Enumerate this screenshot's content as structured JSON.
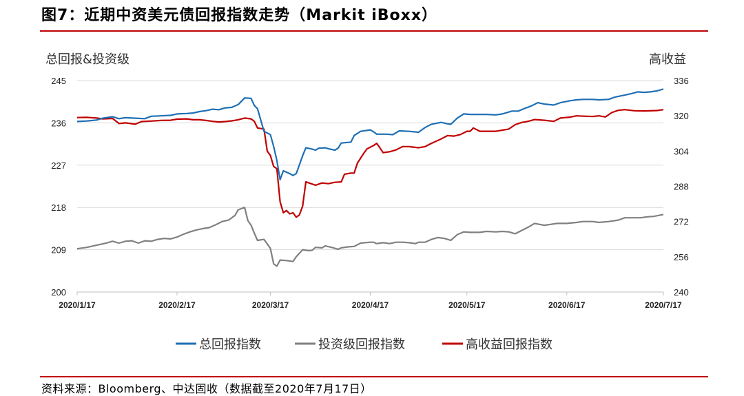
{
  "title": "图7：近期中资美元债回报指数走势（Markit iBoxx）",
  "source": "资料来源：Bloomberg、中达固收（数据截至2020年7月17日）",
  "colors": {
    "accent_red": "#c00000"
  },
  "chart_data": {
    "type": "line",
    "y_left_label": "总回报&投资级",
    "y_right_label": "高收益",
    "y_left": {
      "min": 200,
      "max": 245,
      "ticks": [
        "245",
        "236",
        "227",
        "218",
        "209",
        "200"
      ],
      "values": [
        245,
        236,
        227,
        218,
        209,
        200
      ]
    },
    "y_right": {
      "min": 240,
      "max": 336,
      "ticks": [
        "336",
        "320",
        "304",
        "288",
        "272",
        "256",
        "240"
      ],
      "values": [
        336,
        320,
        304,
        288,
        272,
        256,
        240
      ]
    },
    "x_ticks": [
      "2020/1/17",
      "2020/2/17",
      "2020/3/17",
      "2020/4/17",
      "2020/5/17",
      "2020/6/17",
      "2020/7/17"
    ],
    "x_tick_days": [
      0,
      31,
      60,
      91,
      121,
      152,
      182
    ],
    "grid": true,
    "legend_position": "bottom",
    "series": [
      {
        "name": "总回报指数",
        "axis": "left",
        "color": "#1f6fb4",
        "points": [
          [
            0,
            236.3
          ],
          [
            3,
            236.4
          ],
          [
            6,
            236.6
          ],
          [
            8,
            237.0
          ],
          [
            11,
            237.3
          ],
          [
            13,
            236.9
          ],
          [
            15,
            237.1
          ],
          [
            18,
            237.0
          ],
          [
            21,
            236.9
          ],
          [
            23,
            237.4
          ],
          [
            26,
            237.5
          ],
          [
            29,
            237.6
          ],
          [
            31,
            237.9
          ],
          [
            34,
            238.0
          ],
          [
            36,
            238.1
          ],
          [
            38,
            238.4
          ],
          [
            40,
            238.6
          ],
          [
            42,
            238.9
          ],
          [
            44,
            238.8
          ],
          [
            46,
            239.2
          ],
          [
            48,
            239.3
          ],
          [
            50,
            239.9
          ],
          [
            52,
            241.3
          ],
          [
            54,
            241.2
          ],
          [
            55,
            239.7
          ],
          [
            56,
            239.0
          ],
          [
            58,
            234.2
          ],
          [
            60,
            233.5
          ],
          [
            61,
            231.0
          ],
          [
            62,
            228.0
          ],
          [
            63,
            223.9
          ],
          [
            64,
            225.8
          ],
          [
            66,
            225.2
          ],
          [
            67,
            224.8
          ],
          [
            68,
            225.2
          ],
          [
            70,
            229.0
          ],
          [
            71,
            230.7
          ],
          [
            73,
            230.4
          ],
          [
            74,
            230.2
          ],
          [
            75,
            230.6
          ],
          [
            77,
            230.7
          ],
          [
            78,
            230.5
          ],
          [
            80,
            230.2
          ],
          [
            81,
            230.6
          ],
          [
            82,
            231.7
          ],
          [
            85,
            231.9
          ],
          [
            86,
            233.3
          ],
          [
            88,
            234.2
          ],
          [
            91,
            234.5
          ],
          [
            92,
            234.1
          ],
          [
            93,
            233.6
          ],
          [
            96,
            233.6
          ],
          [
            98,
            233.5
          ],
          [
            100,
            234.3
          ],
          [
            103,
            234.2
          ],
          [
            106,
            234.0
          ],
          [
            108,
            235.0
          ],
          [
            110,
            235.7
          ],
          [
            113,
            236.1
          ],
          [
            115,
            235.8
          ],
          [
            116,
            235.7
          ],
          [
            118,
            237.0
          ],
          [
            120,
            237.9
          ],
          [
            122,
            237.8
          ],
          [
            125,
            237.8
          ],
          [
            127,
            237.8
          ],
          [
            130,
            237.7
          ],
          [
            132,
            237.9
          ],
          [
            135,
            238.5
          ],
          [
            137,
            238.5
          ],
          [
            139,
            239.1
          ],
          [
            141,
            239.6
          ],
          [
            143,
            240.3
          ],
          [
            145,
            240.0
          ],
          [
            148,
            239.8
          ],
          [
            150,
            240.3
          ],
          [
            153,
            240.7
          ],
          [
            155,
            240.9
          ],
          [
            157,
            241.0
          ],
          [
            160,
            241.0
          ],
          [
            162,
            240.9
          ],
          [
            165,
            241.0
          ],
          [
            167,
            241.5
          ],
          [
            170,
            241.9
          ],
          [
            172,
            242.2
          ],
          [
            174,
            242.6
          ],
          [
            176,
            242.5
          ],
          [
            178,
            242.6
          ],
          [
            180,
            242.8
          ],
          [
            182,
            243.2
          ]
        ]
      },
      {
        "name": "投资级回报指数",
        "axis": "left",
        "color": "#808080",
        "points": [
          [
            0,
            209.2
          ],
          [
            3,
            209.5
          ],
          [
            5,
            209.8
          ],
          [
            7,
            210.1
          ],
          [
            9,
            210.4
          ],
          [
            11,
            210.8
          ],
          [
            13,
            210.4
          ],
          [
            15,
            210.8
          ],
          [
            17,
            210.9
          ],
          [
            19,
            210.4
          ],
          [
            21,
            210.9
          ],
          [
            23,
            210.8
          ],
          [
            25,
            211.2
          ],
          [
            27,
            211.4
          ],
          [
            29,
            211.3
          ],
          [
            31,
            211.7
          ],
          [
            33,
            212.3
          ],
          [
            35,
            212.8
          ],
          [
            37,
            213.2
          ],
          [
            39,
            213.5
          ],
          [
            41,
            213.7
          ],
          [
            43,
            214.3
          ],
          [
            45,
            215.0
          ],
          [
            47,
            215.3
          ],
          [
            49,
            216.3
          ],
          [
            50,
            217.5
          ],
          [
            52,
            218.0
          ],
          [
            53,
            215.2
          ],
          [
            54,
            214.2
          ],
          [
            55,
            212.5
          ],
          [
            56,
            211.0
          ],
          [
            58,
            211.2
          ],
          [
            60,
            209.3
          ],
          [
            61,
            206.0
          ],
          [
            62,
            205.5
          ],
          [
            63,
            206.8
          ],
          [
            65,
            206.7
          ],
          [
            67,
            206.5
          ],
          [
            68,
            207.5
          ],
          [
            70,
            209.0
          ],
          [
            72,
            208.8
          ],
          [
            73,
            208.9
          ],
          [
            74,
            209.5
          ],
          [
            76,
            209.4
          ],
          [
            77,
            209.8
          ],
          [
            79,
            209.5
          ],
          [
            81,
            209.1
          ],
          [
            82,
            209.4
          ],
          [
            84,
            209.6
          ],
          [
            86,
            209.7
          ],
          [
            88,
            210.4
          ],
          [
            91,
            210.6
          ],
          [
            92,
            210.6
          ],
          [
            93,
            210.3
          ],
          [
            95,
            210.5
          ],
          [
            97,
            210.3
          ],
          [
            99,
            210.6
          ],
          [
            101,
            210.6
          ],
          [
            103,
            210.5
          ],
          [
            105,
            210.3
          ],
          [
            106,
            210.6
          ],
          [
            108,
            210.6
          ],
          [
            110,
            211.2
          ],
          [
            112,
            211.6
          ],
          [
            114,
            211.4
          ],
          [
            116,
            211.0
          ],
          [
            118,
            212.2
          ],
          [
            120,
            212.8
          ],
          [
            122,
            212.7
          ],
          [
            125,
            212.7
          ],
          [
            127,
            212.9
          ],
          [
            130,
            212.8
          ],
          [
            132,
            212.9
          ],
          [
            134,
            212.8
          ],
          [
            136,
            212.4
          ],
          [
            138,
            213.1
          ],
          [
            140,
            213.8
          ],
          [
            142,
            214.6
          ],
          [
            145,
            214.2
          ],
          [
            147,
            214.4
          ],
          [
            149,
            214.6
          ],
          [
            152,
            214.6
          ],
          [
            155,
            214.8
          ],
          [
            157,
            215.0
          ],
          [
            160,
            215.0
          ],
          [
            162,
            214.8
          ],
          [
            165,
            215.0
          ],
          [
            168,
            215.3
          ],
          [
            170,
            215.8
          ],
          [
            172,
            215.8
          ],
          [
            175,
            215.8
          ],
          [
            177,
            216.0
          ],
          [
            179,
            216.1
          ],
          [
            182,
            216.5
          ]
        ]
      },
      {
        "name": "高收益回报指数",
        "axis": "right",
        "color": "#c00000",
        "points": [
          [
            0,
            319.2
          ],
          [
            3,
            319.3
          ],
          [
            6,
            319.0
          ],
          [
            8,
            318.6
          ],
          [
            11,
            318.8
          ],
          [
            13,
            316.5
          ],
          [
            15,
            316.8
          ],
          [
            18,
            316.2
          ],
          [
            20,
            317.4
          ],
          [
            23,
            317.6
          ],
          [
            26,
            317.9
          ],
          [
            29,
            318.0
          ],
          [
            31,
            318.5
          ],
          [
            34,
            318.6
          ],
          [
            36,
            318.2
          ],
          [
            38,
            318.2
          ],
          [
            40,
            317.9
          ],
          [
            42,
            317.5
          ],
          [
            44,
            317.2
          ],
          [
            46,
            317.4
          ],
          [
            48,
            317.7
          ],
          [
            50,
            318.2
          ],
          [
            52,
            319.0
          ],
          [
            54,
            318.6
          ],
          [
            55,
            317.5
          ],
          [
            56,
            314.5
          ],
          [
            58,
            314.0
          ],
          [
            59,
            304.0
          ],
          [
            60,
            302.0
          ],
          [
            61,
            297.0
          ],
          [
            62,
            296.0
          ],
          [
            63,
            281.0
          ],
          [
            64,
            276.0
          ],
          [
            65,
            277.0
          ],
          [
            66,
            275.5
          ],
          [
            67,
            276.0
          ],
          [
            68,
            274.0
          ],
          [
            69,
            275.0
          ],
          [
            70,
            279.0
          ],
          [
            71,
            290.0
          ],
          [
            72,
            289.5
          ],
          [
            74,
            288.5
          ],
          [
            76,
            289.5
          ],
          [
            78,
            289.2
          ],
          [
            80,
            289.8
          ],
          [
            82,
            290.0
          ],
          [
            83,
            293.5
          ],
          [
            85,
            294.0
          ],
          [
            86,
            294.0
          ],
          [
            87,
            298.5
          ],
          [
            89,
            303.0
          ],
          [
            90,
            305.0
          ],
          [
            92,
            306.5
          ],
          [
            93,
            307.5
          ],
          [
            95,
            303.3
          ],
          [
            97,
            303.7
          ],
          [
            99,
            304.5
          ],
          [
            101,
            306.0
          ],
          [
            103,
            306.0
          ],
          [
            106,
            305.5
          ],
          [
            108,
            306.0
          ],
          [
            110,
            307.5
          ],
          [
            113,
            309.5
          ],
          [
            115,
            311.0
          ],
          [
            117,
            310.8
          ],
          [
            119,
            311.5
          ],
          [
            121,
            313.0
          ],
          [
            122,
            313.0
          ],
          [
            123,
            314.5
          ],
          [
            125,
            313.0
          ],
          [
            127,
            313.0
          ],
          [
            130,
            313.0
          ],
          [
            132,
            313.5
          ],
          [
            134,
            314.0
          ],
          [
            136,
            316.0
          ],
          [
            138,
            317.0
          ],
          [
            140,
            317.5
          ],
          [
            142,
            318.3
          ],
          [
            145,
            318.0
          ],
          [
            148,
            317.5
          ],
          [
            150,
            319.0
          ],
          [
            153,
            319.4
          ],
          [
            155,
            320.0
          ],
          [
            158,
            319.8
          ],
          [
            160,
            319.7
          ],
          [
            162,
            320.0
          ],
          [
            164,
            319.5
          ],
          [
            166,
            321.5
          ],
          [
            168,
            322.5
          ],
          [
            170,
            322.8
          ],
          [
            173,
            322.3
          ],
          [
            176,
            322.2
          ],
          [
            180,
            322.4
          ],
          [
            182,
            322.8
          ]
        ]
      }
    ]
  }
}
